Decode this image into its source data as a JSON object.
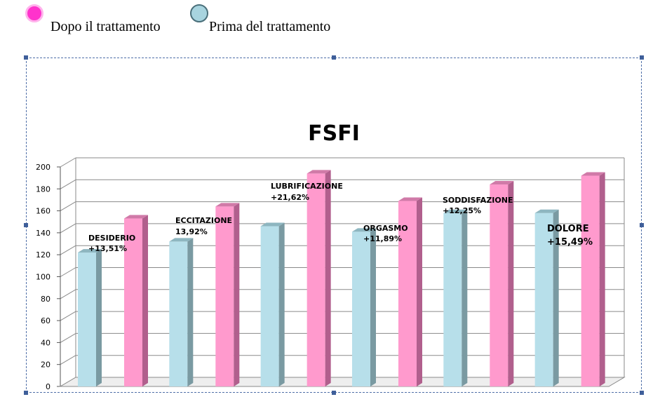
{
  "legend": {
    "after_label": "Dopo il trattamento",
    "before_label": "Prima del trattamento"
  },
  "chart_data": {
    "type": "bar",
    "title": "FSFI",
    "xlabel": "",
    "ylabel": "",
    "ylim": [
      0,
      200
    ],
    "yticks": [
      0,
      20,
      40,
      60,
      80,
      100,
      120,
      140,
      160,
      180,
      200
    ],
    "grid": true,
    "categories": [
      "DESIDERIO",
      "ECCITAZIONE",
      "LUBRIFICAZIONE",
      "ORGASMO",
      "SODDISFAZIONE",
      "DOLORE"
    ],
    "annotations": [
      "+13,51%",
      "13,92%",
      "+21,62%",
      "+11,89%",
      "+12,25%",
      "+15,49%"
    ],
    "series": [
      {
        "name": "Prima del trattamento",
        "color": "#b7dfea",
        "values": [
          122,
          132,
          146,
          141,
          158,
          158
        ]
      },
      {
        "name": "Dopo il trattamento",
        "color": "#ff9acd",
        "values": [
          153,
          164,
          194,
          169,
          184,
          192
        ]
      }
    ],
    "legend_colors": {
      "after": "#ff33cc",
      "before": "#a8d4df"
    }
  }
}
